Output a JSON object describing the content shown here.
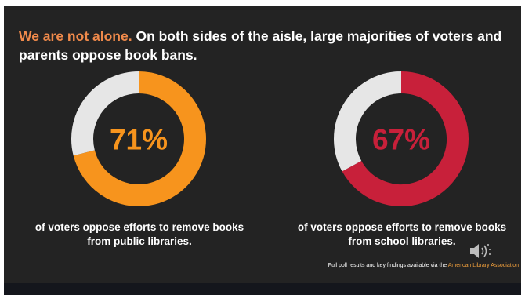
{
  "title": {
    "accent": "We are not alone.",
    "text": "On both sides of the aisle, large majorities of voters and parents oppose book bans."
  },
  "chart_data": [
    {
      "type": "pie",
      "variant": "donut",
      "value": 71,
      "label": "71%",
      "slices": [
        {
          "name": "oppose",
          "value": 71,
          "color": "#f7941d"
        },
        {
          "name": "remainder",
          "value": 29,
          "color": "#e6e6e6"
        }
      ],
      "caption_lines": [
        "of voters oppose efforts to remove books",
        "from public libraries."
      ]
    },
    {
      "type": "pie",
      "variant": "donut",
      "value": 67,
      "label": "67%",
      "slices": [
        {
          "name": "oppose",
          "value": 67,
          "color": "#c8203a"
        },
        {
          "name": "remainder",
          "value": 33,
          "color": "#e6e6e6"
        }
      ],
      "caption_lines": [
        "of voters oppose efforts to remove books",
        "from school libraries."
      ]
    }
  ],
  "footer": {
    "text": "Full poll results and key findings available via the",
    "link": "American Library Association"
  },
  "icons": {
    "speaker": "speaker-volume-icon"
  }
}
